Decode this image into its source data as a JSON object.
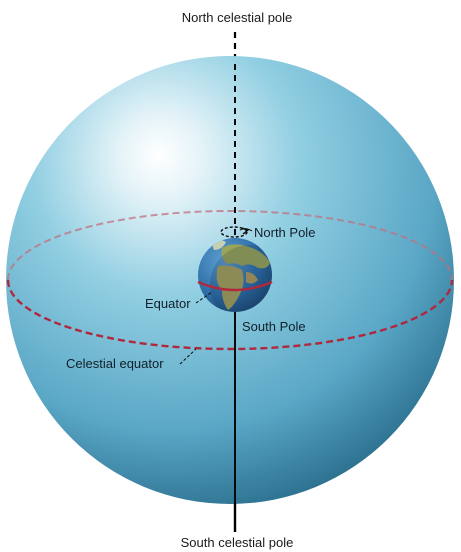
{
  "labels": {
    "north_celestial_pole": "North celestial pole",
    "south_celestial_pole": "South celestial pole",
    "north_pole": "North Pole",
    "south_pole": "South Pole",
    "equator": "Equator",
    "celestial_equator": "Celestial equator"
  },
  "colors": {
    "sphere_highlight": "#ffffff",
    "sphere_mid": "#7fc4dc",
    "sphere_edge": "#2b6f8e",
    "celestial_equator_line": "#b0283e",
    "earth_ocean": "#2f6fa8",
    "earth_land": "#9aa55a",
    "axis_line": "#000000"
  },
  "icons": {
    "rotation_arrow": "rotation-arrow-icon"
  }
}
